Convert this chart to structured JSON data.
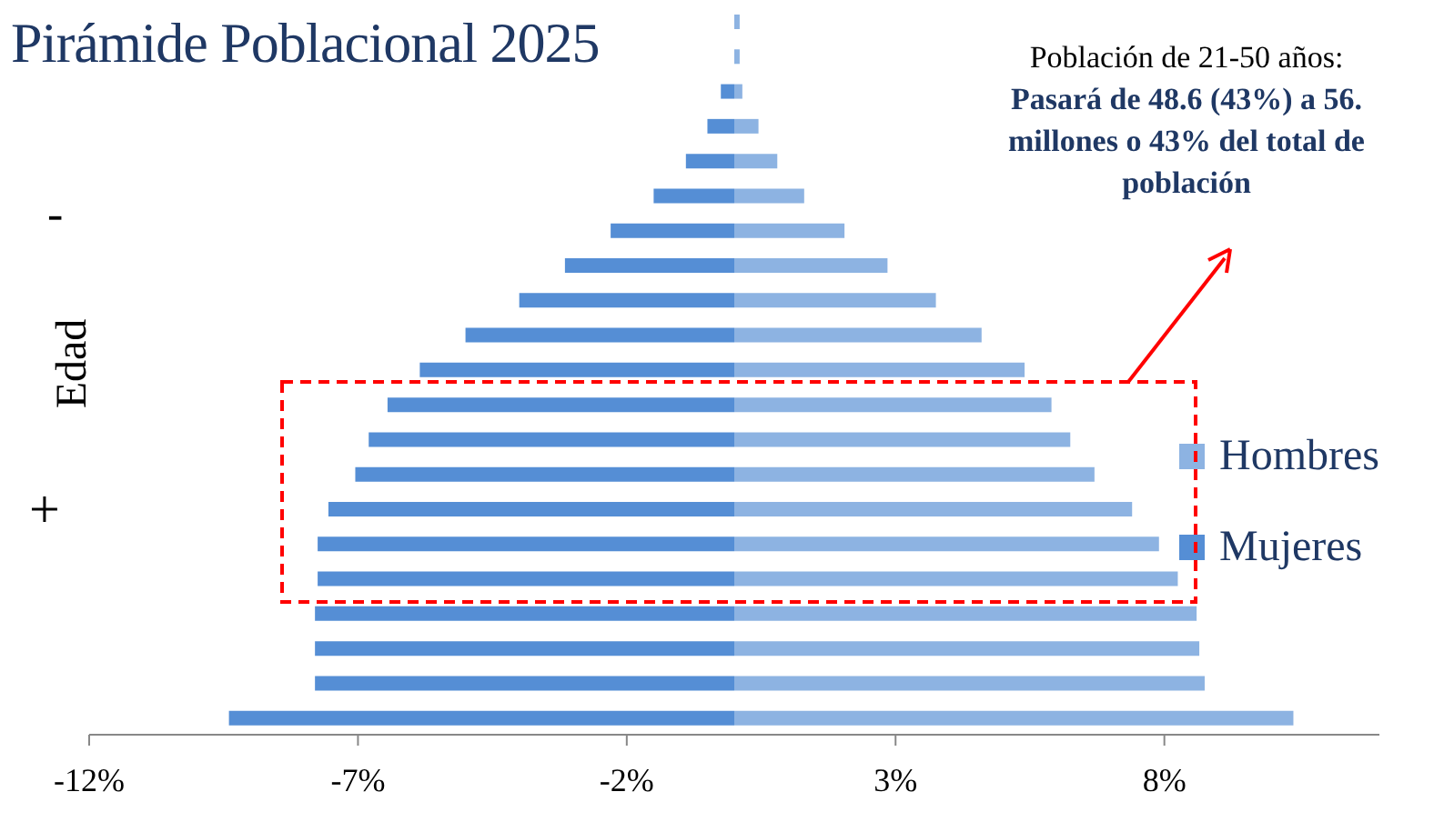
{
  "chart_data": {
    "type": "bar",
    "orientation": "horizontal",
    "stacked": true,
    "title": "Pirámide Poblacional 2025",
    "ylabel": "Edad",
    "annotations": [
      "Población de 21-50 años:",
      "Pasará de 48.6 (43%) a 56.\nmillones o 43% del total de\npoblación",
      "-",
      "+"
    ],
    "categories": [
      null,
      null,
      null,
      null,
      null,
      null,
      null,
      null,
      null,
      null,
      null,
      null,
      null,
      null,
      null,
      null,
      null,
      null,
      null,
      null,
      null
    ],
    "series": [
      {
        "name": "Hombres",
        "color": "#8db3e2",
        "values": [
          0.1,
          0.1,
          0.15,
          0.45,
          0.8,
          1.3,
          2.05,
          2.85,
          3.75,
          4.6,
          5.4,
          5.9,
          6.25,
          6.7,
          7.4,
          7.9,
          8.25,
          8.6,
          8.65,
          8.75,
          10.4
        ]
      },
      {
        "name": "Mujeres",
        "color": "#558ed5",
        "values": [
          0,
          0,
          -0.25,
          -0.5,
          -0.9,
          -1.5,
          -2.3,
          -3.15,
          -4.0,
          -5.0,
          -5.85,
          -6.45,
          -6.8,
          -7.05,
          -7.55,
          -7.75,
          -7.75,
          -7.8,
          -7.8,
          -7.8,
          -9.4
        ]
      }
    ],
    "xlim": [
      -12,
      12
    ],
    "xticks": [
      {
        "value": -12,
        "label": "-12%"
      },
      {
        "value": -7,
        "label": "-7%"
      },
      {
        "value": -2,
        "label": "-2%"
      },
      {
        "value": 3,
        "label": "3%"
      },
      {
        "value": 8,
        "label": "8%"
      }
    ],
    "grid": false,
    "legend": "right"
  }
}
